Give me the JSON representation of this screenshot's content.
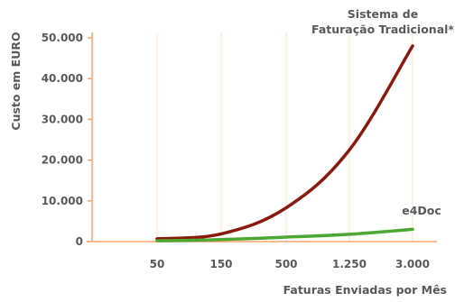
{
  "chart_data": {
    "type": "line",
    "title": "",
    "xlabel": "Faturas Enviadas por Mês",
    "ylabel": "Custo em EURO",
    "categories": [
      "50",
      "150",
      "500",
      "1.250",
      "3.000"
    ],
    "ylim": [
      0,
      50000
    ],
    "yticks": [
      0,
      10000,
      20000,
      30000,
      40000,
      50000
    ],
    "ytick_labels": [
      "0",
      "10.000",
      "20.000",
      "30.000",
      "40.000",
      "50.000"
    ],
    "grid": "vertical",
    "series": [
      {
        "name": "Sistema de Faturação Tradicional*",
        "label_lines": [
          "Sistema de",
          "Faturação Tradicional*"
        ],
        "color": "#8b1a0e",
        "values": [
          700,
          1900,
          8300,
          22500,
          48000
        ]
      },
      {
        "name": "e4Doc",
        "label_lines": [
          "e4Doc"
        ],
        "color": "#4ca832",
        "values": [
          200,
          500,
          1100,
          1800,
          3000
        ]
      }
    ],
    "colors": {
      "axis": "#f5a36b",
      "grid": "#fde3c9",
      "text": "#595959"
    }
  }
}
